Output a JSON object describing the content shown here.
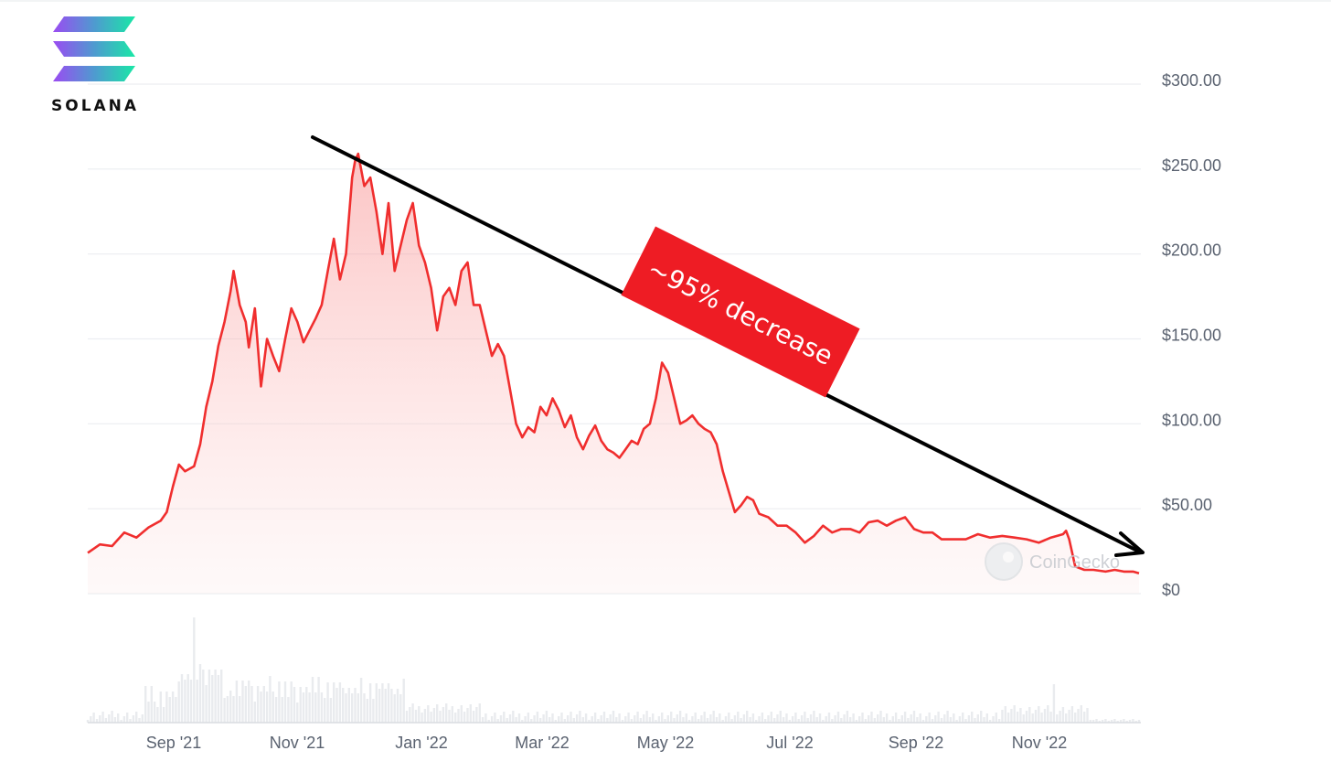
{
  "logo": {
    "text": "SOLANA"
  },
  "watermark": {
    "text": "CoinGecko"
  },
  "annotation": {
    "text": "~95% decrease"
  },
  "chart_data": {
    "type": "area",
    "title": "",
    "xlabel": "",
    "ylabel": "",
    "y_ticks": [
      "$300.00",
      "$250.00",
      "$200.00",
      "$150.00",
      "$100.00",
      "$50.00",
      "$0"
    ],
    "x_ticks": [
      "Sep '21",
      "Nov '21",
      "Jan '22",
      "Mar '22",
      "May '22",
      "Jul '22",
      "Sep '22",
      "Nov '22"
    ],
    "ylim": [
      0,
      300
    ],
    "grid": true,
    "colors": {
      "line": "#f02e2e",
      "fill_top": "#fbd3d3",
      "arrow": "#000000",
      "annotation_bg": "#ee1c24"
    },
    "series": [
      {
        "values": [
          [
            0,
            24
          ],
          [
            4,
            29
          ],
          [
            8,
            28
          ],
          [
            12,
            36
          ],
          [
            16,
            33
          ],
          [
            20,
            39
          ],
          [
            24,
            43
          ],
          [
            26,
            48
          ],
          [
            28,
            63
          ],
          [
            30,
            76
          ],
          [
            32,
            72
          ],
          [
            35,
            75
          ],
          [
            37,
            88
          ],
          [
            39,
            110
          ],
          [
            41,
            125
          ],
          [
            43,
            146
          ],
          [
            45,
            160
          ],
          [
            47,
            178
          ],
          [
            48,
            190
          ],
          [
            50,
            170
          ],
          [
            52,
            160
          ],
          [
            53,
            145
          ],
          [
            55,
            168
          ],
          [
            57,
            122
          ],
          [
            59,
            150
          ],
          [
            61,
            140
          ],
          [
            63,
            131
          ],
          [
            65,
            150
          ],
          [
            67,
            168
          ],
          [
            69,
            160
          ],
          [
            71,
            148
          ],
          [
            73,
            155
          ],
          [
            75,
            162
          ],
          [
            77,
            170
          ],
          [
            79,
            190
          ],
          [
            81,
            209
          ],
          [
            83,
            185
          ],
          [
            85,
            200
          ],
          [
            87,
            245
          ],
          [
            88,
            255
          ],
          [
            89,
            259
          ],
          [
            91,
            240
          ],
          [
            93,
            245
          ],
          [
            95,
            225
          ],
          [
            97,
            200
          ],
          [
            99,
            230
          ],
          [
            101,
            190
          ],
          [
            103,
            205
          ],
          [
            105,
            220
          ],
          [
            107,
            230
          ],
          [
            109,
            205
          ],
          [
            111,
            195
          ],
          [
            113,
            180
          ],
          [
            115,
            155
          ],
          [
            117,
            175
          ],
          [
            119,
            180
          ],
          [
            121,
            170
          ],
          [
            123,
            190
          ],
          [
            125,
            195
          ],
          [
            127,
            170
          ],
          [
            129,
            170
          ],
          [
            131,
            155
          ],
          [
            133,
            140
          ],
          [
            135,
            147
          ],
          [
            137,
            140
          ],
          [
            139,
            120
          ],
          [
            141,
            100
          ],
          [
            143,
            92
          ],
          [
            145,
            98
          ],
          [
            147,
            95
          ],
          [
            149,
            110
          ],
          [
            151,
            105
          ],
          [
            153,
            115
          ],
          [
            155,
            108
          ],
          [
            157,
            98
          ],
          [
            159,
            105
          ],
          [
            161,
            92
          ],
          [
            163,
            85
          ],
          [
            165,
            93
          ],
          [
            167,
            99
          ],
          [
            169,
            90
          ],
          [
            171,
            85
          ],
          [
            173,
            83
          ],
          [
            175,
            80
          ],
          [
            177,
            85
          ],
          [
            179,
            90
          ],
          [
            181,
            88
          ],
          [
            183,
            97
          ],
          [
            185,
            100
          ],
          [
            187,
            115
          ],
          [
            189,
            136
          ],
          [
            191,
            130
          ],
          [
            193,
            115
          ],
          [
            195,
            100
          ],
          [
            197,
            102
          ],
          [
            199,
            105
          ],
          [
            201,
            100
          ],
          [
            203,
            97
          ],
          [
            205,
            95
          ],
          [
            207,
            88
          ],
          [
            209,
            72
          ],
          [
            211,
            60
          ],
          [
            213,
            48
          ],
          [
            215,
            52
          ],
          [
            217,
            57
          ],
          [
            219,
            55
          ],
          [
            221,
            47
          ],
          [
            224,
            45
          ],
          [
            227,
            40
          ],
          [
            230,
            40
          ],
          [
            233,
            36
          ],
          [
            236,
            30
          ],
          [
            239,
            34
          ],
          [
            242,
            40
          ],
          [
            245,
            36
          ],
          [
            248,
            38
          ],
          [
            251,
            38
          ],
          [
            254,
            36
          ],
          [
            257,
            42
          ],
          [
            260,
            43
          ],
          [
            263,
            40
          ],
          [
            266,
            43
          ],
          [
            269,
            45
          ],
          [
            272,
            38
          ],
          [
            275,
            36
          ],
          [
            278,
            36
          ],
          [
            281,
            32
          ],
          [
            285,
            32
          ],
          [
            289,
            32
          ],
          [
            293,
            35
          ],
          [
            297,
            33
          ],
          [
            301,
            34
          ],
          [
            305,
            33
          ],
          [
            309,
            32
          ],
          [
            313,
            30
          ],
          [
            317,
            33
          ],
          [
            319,
            34
          ],
          [
            321,
            35
          ],
          [
            322,
            37
          ],
          [
            323,
            32
          ],
          [
            325,
            16
          ],
          [
            328,
            14
          ],
          [
            331,
            14
          ],
          [
            335,
            13
          ],
          [
            338,
            14
          ],
          [
            341,
            13
          ],
          [
            344,
            13
          ],
          [
            346,
            12
          ]
        ]
      }
    ]
  }
}
